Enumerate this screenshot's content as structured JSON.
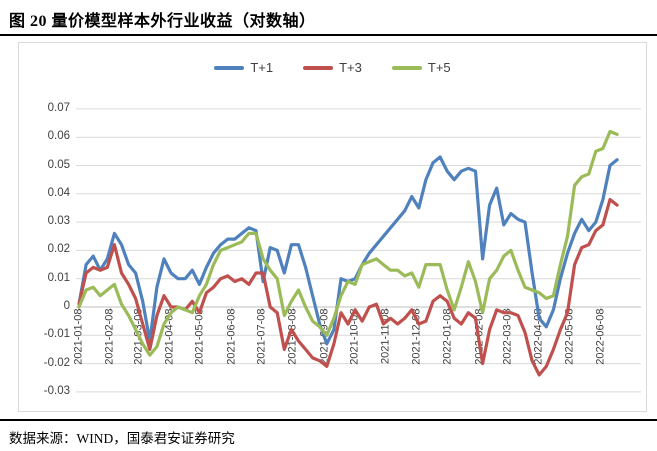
{
  "title": "图 20 量价模型样本外行业收益（对数轴）",
  "source_note": "数据来源：WIND，国泰君安证券研究",
  "colors": {
    "t1_blue": "#4f81bd",
    "t3_red": "#c0504d",
    "t5_green": "#9bbb59",
    "gridline": "#d9d9d9",
    "axis": "#bfbfbf",
    "rule": "#000000",
    "tick_text": "#3f3f3f"
  },
  "chart_data": {
    "type": "line",
    "title": "图 20 量价模型样本外行业收益（对数轴）",
    "xlabel": "",
    "ylabel": "",
    "grid": true,
    "legend_position": "top-center",
    "ylim": [
      -0.03,
      0.07
    ],
    "y_ticks": [
      "0.07",
      "0.06",
      "0.05",
      "0.04",
      "0.03",
      "0.02",
      "0.01",
      "0",
      "-0.01",
      "-0.02",
      "-0.03"
    ],
    "y_tick_values": [
      0.07,
      0.06,
      0.05,
      0.04,
      0.03,
      0.02,
      0.01,
      0,
      -0.01,
      -0.02,
      -0.03
    ],
    "x_unit": "weeks since 2021-01-08 (weekly points)",
    "x_tick_labels": [
      "2021-01-08",
      "2021-02-08",
      "2021-03-08",
      "2021-04-08",
      "2021-05-08",
      "2021-06-08",
      "2021-07-08",
      "2021-08-08",
      "2021-09-08",
      "2021-10-08",
      "2021-11-08",
      "2021-12-08",
      "2022-01-08",
      "2022-02-08",
      "2022-03-08",
      "2022-04-08",
      "2022-05-08",
      "2022-06-08"
    ],
    "x_tick_weeks": [
      0,
      4.43,
      8.43,
      12.86,
      17.14,
      21.57,
      25.86,
      30.29,
      34.71,
      39.0,
      43.43,
      47.71,
      52.14,
      56.57,
      60.57,
      65.0,
      69.29,
      73.71
    ],
    "series": [
      {
        "name": "T+1",
        "color": "#4f81bd",
        "values": [
          0.001,
          0.015,
          0.018,
          0.013,
          0.017,
          0.026,
          0.022,
          0.015,
          0.012,
          0.002,
          -0.012,
          0.007,
          0.017,
          0.012,
          0.01,
          0.01,
          0.013,
          0.008,
          0.014,
          0.019,
          0.022,
          0.024,
          0.024,
          0.026,
          0.028,
          0.027,
          0.009,
          0.021,
          0.02,
          0.012,
          0.022,
          0.022,
          0.014,
          0.004,
          -0.006,
          -0.013,
          -0.008,
          0.01,
          0.009,
          0.01,
          0.015,
          0.019,
          0.022,
          0.025,
          0.028,
          0.031,
          0.034,
          0.039,
          0.035,
          0.045,
          0.051,
          0.053,
          0.048,
          0.045,
          0.048,
          0.049,
          0.048,
          0.017,
          0.036,
          0.042,
          0.029,
          0.033,
          0.031,
          0.03,
          0.012,
          -0.004,
          -0.007,
          -0.001,
          0.01,
          0.019,
          0.026,
          0.031,
          0.027,
          0.03,
          0.038,
          0.05,
          0.052
        ]
      },
      {
        "name": "T+3",
        "color": "#c0504d",
        "values": [
          0.001,
          0.012,
          0.014,
          0.013,
          0.014,
          0.022,
          0.012,
          0.008,
          0.003,
          -0.006,
          -0.015,
          -0.003,
          0.004,
          0.0,
          0.0,
          -0.001,
          0.002,
          -0.002,
          0.005,
          0.007,
          0.01,
          0.011,
          0.009,
          0.01,
          0.008,
          0.012,
          0.012,
          0.0,
          -0.002,
          -0.015,
          -0.008,
          -0.012,
          -0.015,
          -0.018,
          -0.019,
          -0.021,
          -0.013,
          -0.002,
          -0.006,
          -0.001,
          -0.005,
          0.0,
          0.001,
          -0.006,
          -0.004,
          -0.006,
          -0.004,
          -0.001,
          -0.006,
          -0.005,
          0.002,
          0.004,
          0.002,
          -0.004,
          -0.006,
          -0.002,
          -0.004,
          -0.02,
          -0.008,
          -0.001,
          -0.002,
          -0.002,
          -0.003,
          -0.009,
          -0.019,
          -0.024,
          -0.021,
          -0.015,
          -0.008,
          -0.002,
          0.015,
          0.021,
          0.022,
          0.027,
          0.029,
          0.038,
          0.036
        ]
      },
      {
        "name": "T+5",
        "color": "#9bbb59",
        "values": [
          0.0,
          0.006,
          0.007,
          0.004,
          0.006,
          0.008,
          0.001,
          -0.003,
          -0.008,
          -0.013,
          -0.017,
          -0.014,
          -0.006,
          -0.002,
          0.0,
          -0.001,
          -0.002,
          0.004,
          0.008,
          0.015,
          0.02,
          0.021,
          0.022,
          0.023,
          0.026,
          0.026,
          0.017,
          0.013,
          0.01,
          -0.003,
          0.002,
          0.006,
          0.0,
          -0.005,
          -0.007,
          -0.01,
          -0.004,
          0.004,
          0.009,
          0.008,
          0.015,
          0.016,
          0.017,
          0.015,
          0.013,
          0.013,
          0.011,
          0.012,
          0.007,
          0.015,
          0.015,
          0.015,
          0.006,
          -0.001,
          0.007,
          0.016,
          0.009,
          -0.002,
          0.01,
          0.013,
          0.018,
          0.02,
          0.013,
          0.007,
          0.006,
          0.005,
          0.003,
          0.004,
          0.015,
          0.025,
          0.043,
          0.046,
          0.047,
          0.055,
          0.056,
          0.062,
          0.061
        ]
      }
    ]
  }
}
